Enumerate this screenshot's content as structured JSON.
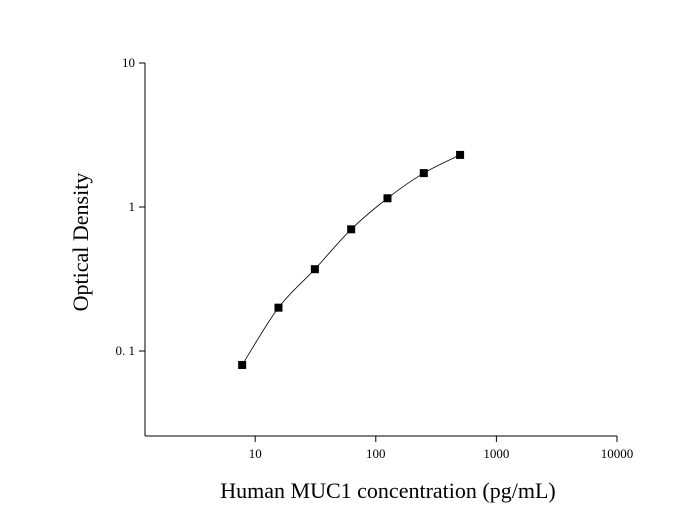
{
  "chart_data": {
    "type": "scatter",
    "x_label": "Human MUC1 concentration (pg/mL)",
    "y_label": "Optical Density",
    "x": [
      7.8,
      15.6,
      31.25,
      62.5,
      125,
      250,
      500
    ],
    "series": [
      {
        "color": "#000000",
        "values": [
          0.08,
          0.2,
          0.37,
          0.7,
          1.15,
          1.72,
          2.3
        ]
      }
    ],
    "xlim": [
      1.22,
      10000
    ],
    "ylim": [
      0.0257,
      10
    ],
    "xticks": [
      10,
      100,
      1000,
      10000
    ],
    "yticks": [
      {
        "value": 0.1,
        "label": "0. 1"
      },
      1,
      10
    ],
    "xlog": true,
    "ylog": true,
    "fit_curve": true
  }
}
